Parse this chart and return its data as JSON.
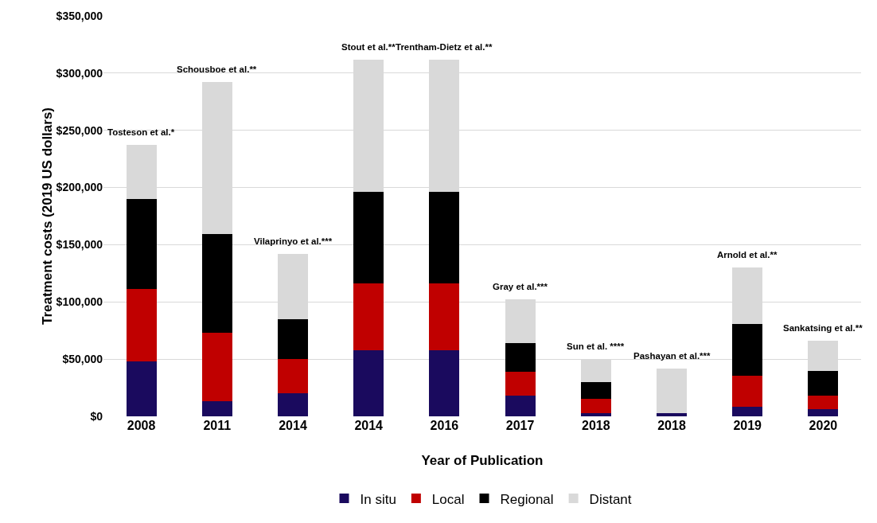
{
  "chart_data": {
    "type": "bar",
    "stacked": true,
    "xlabel": "Year of Publication",
    "ylabel": "Treatment costs (2019 US dollars)",
    "categories": [
      "2008",
      "2011",
      "2014",
      "2014",
      "2016",
      "2017",
      "2018",
      "2018",
      "2019",
      "2020"
    ],
    "series": [
      {
        "name": "In situ",
        "color": "#1a0a5e",
        "values": [
          48000,
          13000,
          20000,
          58000,
          58000,
          18000,
          2500,
          3000,
          8500,
          6500
        ]
      },
      {
        "name": "Local",
        "color": "#c00000",
        "values": [
          63000,
          60000,
          30000,
          58000,
          58000,
          21000,
          12500,
          0,
          27000,
          11500
        ]
      },
      {
        "name": "Regional",
        "color": "#000000",
        "values": [
          79000,
          86000,
          35000,
          80000,
          80000,
          25000,
          15000,
          0,
          45500,
          21500
        ]
      },
      {
        "name": "Distant",
        "color": "#d9d9d9",
        "values": [
          47000,
          133000,
          57000,
          116000,
          116000,
          38000,
          20000,
          39000,
          49000,
          26500
        ]
      }
    ],
    "ylim": [
      0,
      350000
    ],
    "yticks": [
      {
        "value": 0,
        "label": "$0"
      },
      {
        "value": 50000,
        "label": "$50,000"
      },
      {
        "value": 100000,
        "label": "$100,000"
      },
      {
        "value": 150000,
        "label": "$150,000"
      },
      {
        "value": 200000,
        "label": "$200,000"
      },
      {
        "value": 250000,
        "label": "$250,000"
      },
      {
        "value": 300000,
        "label": "$300,000"
      },
      {
        "value": 350000,
        "label": "$350,000"
      }
    ],
    "grid": "y",
    "legend": "bottom",
    "annotations": [
      "Tosteson et al.*",
      "Schousboe et al.**",
      "Vilaprinyo et al.***",
      "Stout et al.**",
      "Trentham-Dietz et al.**",
      "Gray et al.***",
      "Sun et al. ****",
      "Pashayan et al.***",
      "Arnold et al.**",
      "Sankatsing et al.**"
    ]
  }
}
